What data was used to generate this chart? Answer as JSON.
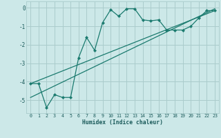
{
  "xlabel": "Humidex (Indice chaleur)",
  "ylabel": "",
  "bg_color": "#cce8e8",
  "grid_color": "#aacccc",
  "line_color": "#1a7a6e",
  "xlim": [
    -0.5,
    23.5
  ],
  "ylim": [
    -5.7,
    0.35
  ],
  "xticks": [
    0,
    1,
    2,
    3,
    4,
    5,
    6,
    7,
    8,
    9,
    10,
    11,
    12,
    13,
    14,
    15,
    16,
    17,
    18,
    19,
    20,
    21,
    22,
    23
  ],
  "yticks": [
    0,
    -1,
    -2,
    -3,
    -4,
    -5
  ],
  "main_x": [
    0,
    1,
    2,
    3,
    4,
    5,
    6,
    7,
    8,
    9,
    10,
    11,
    12,
    13,
    14,
    15,
    16,
    17,
    18,
    19,
    20,
    21,
    22,
    23
  ],
  "main_y": [
    -4.1,
    -4.1,
    -5.4,
    -4.7,
    -4.85,
    -4.85,
    -2.7,
    -1.6,
    -2.3,
    -0.8,
    -0.1,
    -0.45,
    -0.05,
    -0.05,
    -0.65,
    -0.7,
    -0.65,
    -1.2,
    -1.2,
    -1.2,
    -1.0,
    -0.55,
    -0.15,
    -0.15
  ],
  "line2_x": [
    0,
    23
  ],
  "line2_y": [
    -4.1,
    -0.15
  ],
  "line3_x": [
    0,
    23
  ],
  "line3_y": [
    -4.85,
    -0.05
  ]
}
